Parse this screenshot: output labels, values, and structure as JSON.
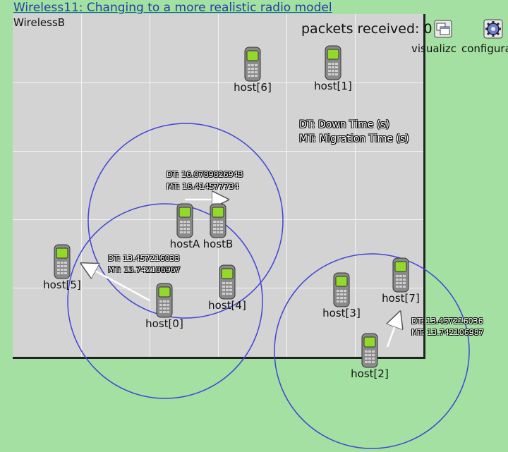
{
  "title": "Wireless11: Changing to a more realistic radio model",
  "network_name": "WirelessB",
  "packets_received": "packets received: 0",
  "tools": {
    "visualizer_label": "visualizc",
    "configurator_label": "configura"
  },
  "legend": {
    "dt": "DT: Down Time (s)",
    "mt": "MT: Migration Time (s)"
  },
  "hosts": {
    "host6": "host[6]",
    "host1": "host[1]",
    "hostA": "hostA",
    "hostB": "hostB",
    "host5": "host[5]",
    "host4": "host[4]",
    "host0": "host[0]",
    "host3": "host[3]",
    "host7": "host[7]",
    "host2": "host[2]"
  },
  "annotations": {
    "ab": {
      "dt": "DT: 16.0789826943",
      "mt": "MT: 16.414577734"
    },
    "h0": {
      "dt": "DT: 13.457216033",
      "mt": "MT: 13.742106967"
    },
    "h2": {
      "dt": "DT: 13.457216036",
      "mt": "MT: 13.742106987"
    }
  },
  "colors": {
    "background": "#a3e0a1",
    "canvas": "#d3d3d3",
    "range_circle": "#4144d6",
    "title": "#1f3fa6"
  }
}
